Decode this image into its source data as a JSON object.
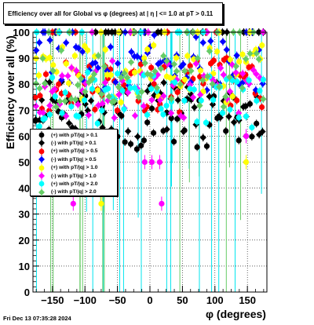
{
  "chart_data": {
    "type": "scatter",
    "title": "Efficiency over all for Global vs φ (degrees) at | η | <= 1.0 at pT > 0.11",
    "xlabel": "φ (degrees)",
    "ylabel": "Efficiency over all (%)",
    "xlim": [
      -180,
      180
    ],
    "ylim": [
      0,
      100
    ],
    "x_ticks": [
      -150,
      -100,
      -50,
      0,
      50,
      100,
      150
    ],
    "y_ticks": [
      0,
      10,
      20,
      30,
      40,
      50,
      60,
      70,
      80,
      90,
      100
    ],
    "grid": true,
    "legend_position": "left-middle",
    "series": [
      {
        "name": "(+) with pT/|q| > 0.1",
        "color": "#000000",
        "marker": "circle",
        "base": 66
      },
      {
        "name": "(-) with pT/|q| > 0.1",
        "color": "#000000",
        "marker": "diamond",
        "base": 70
      },
      {
        "name": "(+) with pT/|q| > 0.5",
        "color": "#ff0000",
        "marker": "circle",
        "base": 80
      },
      {
        "name": "(-) with pT/|q| > 0.5",
        "color": "#0000ff",
        "marker": "diamond",
        "base": 88
      },
      {
        "name": "(+) with pT/|q| > 1.0",
        "color": "#ffff00",
        "marker": "circle",
        "base": 84
      },
      {
        "name": "(-) with pT/|q| > 1.0",
        "color": "#ff00ff",
        "marker": "diamond",
        "base": 78
      },
      {
        "name": "(+) with pT/|q| > 2.0",
        "color": "#00ffff",
        "marker": "circle",
        "base": 74
      },
      {
        "name": "(-) with pT/|q| > 2.0",
        "color": "#66cc66",
        "marker": "diamond",
        "base": 82
      }
    ],
    "outliers": [
      {
        "x": -118,
        "y": 34,
        "color": "#ff00ff"
      },
      {
        "x": -75,
        "y": 34,
        "color": "#ffff00"
      },
      {
        "x": -8,
        "y": 50,
        "color": "#ff00ff"
      },
      {
        "x": 3,
        "y": 50,
        "color": "#ff00ff"
      },
      {
        "x": 15,
        "y": 50,
        "color": "#ff00ff"
      },
      {
        "x": 18,
        "y": 34,
        "color": "#ff00ff"
      },
      {
        "x": 148,
        "y": 50,
        "color": "#ffff00"
      },
      {
        "x": 148,
        "y": 60,
        "color": "#ff00ff"
      }
    ]
  },
  "timestamp": "Fri Dec 13 07:35:28 2024"
}
